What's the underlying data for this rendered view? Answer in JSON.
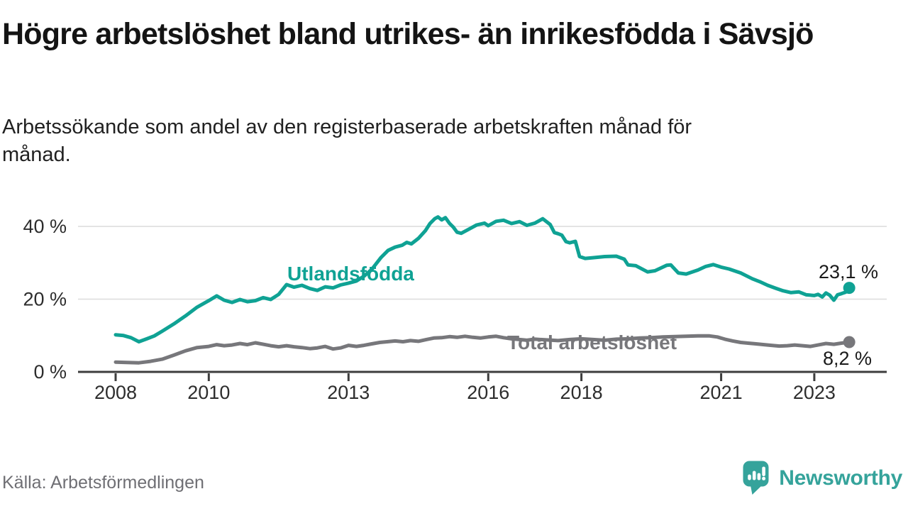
{
  "header": {
    "title": "Högre arbetslöshet bland utrikes- än inrikesfödda i Sävsjö",
    "subtitle": "Arbetssökande som andel av den registerbaserade arbetskraften månad för månad."
  },
  "chart_data": {
    "type": "line",
    "unit": "%",
    "grid": "horizontal",
    "legend_position": "inline-labels",
    "x_domain": [
      2008.0,
      2023.75
    ],
    "y_domain": [
      0,
      45
    ],
    "x_label_years": [
      2008,
      2010,
      2013,
      2016,
      2018,
      2021,
      2023
    ],
    "y_ticks": [
      {
        "value": 0,
        "label": "0 %"
      },
      {
        "value": 20,
        "label": "20 %"
      },
      {
        "value": 40,
        "label": "40 %"
      }
    ],
    "series": [
      {
        "name": "Utlandsfödda",
        "color": "#0FA294",
        "end_value": 23.1,
        "end_label": "23,1 %",
        "name_label_pos": {
          "x": 405,
          "y": 395
        },
        "end_label_pos": {
          "x": 1238,
          "y": 392
        },
        "points": [
          [
            2008.0,
            10.2
          ],
          [
            2008.17,
            10.0
          ],
          [
            2008.33,
            9.4
          ],
          [
            2008.5,
            8.3
          ],
          [
            2008.67,
            9.1
          ],
          [
            2008.83,
            9.9
          ],
          [
            2009.0,
            11.2
          ],
          [
            2009.25,
            13.2
          ],
          [
            2009.5,
            15.4
          ],
          [
            2009.75,
            17.8
          ],
          [
            2010.0,
            19.6
          ],
          [
            2010.17,
            20.9
          ],
          [
            2010.33,
            19.7
          ],
          [
            2010.5,
            19.1
          ],
          [
            2010.67,
            19.9
          ],
          [
            2010.83,
            19.3
          ],
          [
            2011.0,
            19.6
          ],
          [
            2011.17,
            20.4
          ],
          [
            2011.33,
            19.9
          ],
          [
            2011.5,
            21.3
          ],
          [
            2011.67,
            24.0
          ],
          [
            2011.83,
            23.3
          ],
          [
            2012.0,
            23.8
          ],
          [
            2012.17,
            22.9
          ],
          [
            2012.33,
            22.4
          ],
          [
            2012.5,
            23.4
          ],
          [
            2012.67,
            23.1
          ],
          [
            2012.83,
            23.9
          ],
          [
            2013.0,
            24.4
          ],
          [
            2013.17,
            25.0
          ],
          [
            2013.33,
            26.3
          ],
          [
            2013.5,
            28.2
          ],
          [
            2013.7,
            31.5
          ],
          [
            2013.85,
            33.4
          ],
          [
            2014.0,
            34.3
          ],
          [
            2014.15,
            34.8
          ],
          [
            2014.25,
            35.6
          ],
          [
            2014.35,
            35.2
          ],
          [
            2014.5,
            36.7
          ],
          [
            2014.65,
            38.8
          ],
          [
            2014.75,
            40.8
          ],
          [
            2014.85,
            42.1
          ],
          [
            2014.92,
            42.6
          ],
          [
            2015.0,
            41.8
          ],
          [
            2015.08,
            42.4
          ],
          [
            2015.17,
            40.8
          ],
          [
            2015.25,
            39.8
          ],
          [
            2015.33,
            38.4
          ],
          [
            2015.42,
            38.1
          ],
          [
            2015.58,
            39.2
          ],
          [
            2015.75,
            40.4
          ],
          [
            2015.92,
            40.9
          ],
          [
            2016.0,
            40.2
          ],
          [
            2016.17,
            41.4
          ],
          [
            2016.33,
            41.7
          ],
          [
            2016.5,
            40.8
          ],
          [
            2016.67,
            41.3
          ],
          [
            2016.83,
            40.3
          ],
          [
            2017.0,
            40.9
          ],
          [
            2017.17,
            42.1
          ],
          [
            2017.33,
            40.5
          ],
          [
            2017.42,
            38.3
          ],
          [
            2017.5,
            38.0
          ],
          [
            2017.58,
            37.6
          ],
          [
            2017.67,
            35.8
          ],
          [
            2017.75,
            35.5
          ],
          [
            2017.87,
            35.9
          ],
          [
            2017.96,
            31.7
          ],
          [
            2018.08,
            31.2
          ],
          [
            2018.25,
            31.4
          ],
          [
            2018.5,
            31.7
          ],
          [
            2018.75,
            31.8
          ],
          [
            2018.92,
            31.0
          ],
          [
            2019.0,
            29.4
          ],
          [
            2019.17,
            29.2
          ],
          [
            2019.42,
            27.5
          ],
          [
            2019.58,
            27.8
          ],
          [
            2019.83,
            29.3
          ],
          [
            2019.92,
            29.4
          ],
          [
            2020.08,
            27.2
          ],
          [
            2020.25,
            26.9
          ],
          [
            2020.5,
            28.0
          ],
          [
            2020.67,
            29.0
          ],
          [
            2020.83,
            29.5
          ],
          [
            2021.0,
            28.8
          ],
          [
            2021.17,
            28.3
          ],
          [
            2021.42,
            27.2
          ],
          [
            2021.67,
            25.6
          ],
          [
            2021.83,
            24.8
          ],
          [
            2022.0,
            23.8
          ],
          [
            2022.17,
            23.0
          ],
          [
            2022.33,
            22.3
          ],
          [
            2022.5,
            21.8
          ],
          [
            2022.67,
            22.0
          ],
          [
            2022.83,
            21.2
          ],
          [
            2023.0,
            21.0
          ],
          [
            2023.08,
            21.3
          ],
          [
            2023.17,
            20.6
          ],
          [
            2023.25,
            21.7
          ],
          [
            2023.33,
            21.1
          ],
          [
            2023.42,
            19.7
          ],
          [
            2023.5,
            21.2
          ],
          [
            2023.58,
            21.5
          ],
          [
            2023.67,
            21.9
          ],
          [
            2023.75,
            23.1
          ]
        ]
      },
      {
        "name": "Total arbetslöshet",
        "color": "#77777B",
        "end_value": 8.2,
        "end_label": "8,2 %",
        "name_label_pos": {
          "x": 715,
          "y": 492
        },
        "end_label_pos": {
          "x": 1229,
          "y": 514
        },
        "points": [
          [
            2008.0,
            2.7
          ],
          [
            2008.25,
            2.6
          ],
          [
            2008.5,
            2.5
          ],
          [
            2008.75,
            2.9
          ],
          [
            2009.0,
            3.5
          ],
          [
            2009.25,
            4.6
          ],
          [
            2009.5,
            5.8
          ],
          [
            2009.75,
            6.7
          ],
          [
            2010.0,
            7.0
          ],
          [
            2010.17,
            7.5
          ],
          [
            2010.33,
            7.2
          ],
          [
            2010.5,
            7.4
          ],
          [
            2010.67,
            7.8
          ],
          [
            2010.83,
            7.5
          ],
          [
            2011.0,
            8.0
          ],
          [
            2011.17,
            7.6
          ],
          [
            2011.33,
            7.2
          ],
          [
            2011.5,
            6.9
          ],
          [
            2011.67,
            7.2
          ],
          [
            2011.83,
            6.9
          ],
          [
            2012.0,
            6.7
          ],
          [
            2012.17,
            6.4
          ],
          [
            2012.33,
            6.6
          ],
          [
            2012.5,
            7.0
          ],
          [
            2012.67,
            6.3
          ],
          [
            2012.83,
            6.6
          ],
          [
            2013.0,
            7.3
          ],
          [
            2013.17,
            7.0
          ],
          [
            2013.33,
            7.3
          ],
          [
            2013.5,
            7.7
          ],
          [
            2013.67,
            8.1
          ],
          [
            2013.83,
            8.3
          ],
          [
            2014.0,
            8.5
          ],
          [
            2014.17,
            8.3
          ],
          [
            2014.33,
            8.6
          ],
          [
            2014.5,
            8.4
          ],
          [
            2014.67,
            8.9
          ],
          [
            2014.83,
            9.3
          ],
          [
            2015.0,
            9.4
          ],
          [
            2015.17,
            9.7
          ],
          [
            2015.33,
            9.5
          ],
          [
            2015.5,
            9.8
          ],
          [
            2015.67,
            9.5
          ],
          [
            2015.83,
            9.3
          ],
          [
            2016.0,
            9.6
          ],
          [
            2016.17,
            9.8
          ],
          [
            2016.33,
            9.4
          ],
          [
            2016.5,
            9.1
          ],
          [
            2016.67,
            8.9
          ],
          [
            2016.83,
            8.7
          ],
          [
            2017.0,
            9.0
          ],
          [
            2017.25,
            8.8
          ],
          [
            2017.5,
            8.6
          ],
          [
            2017.75,
            8.9
          ],
          [
            2018.0,
            9.1
          ],
          [
            2018.25,
            8.9
          ],
          [
            2018.5,
            8.7
          ],
          [
            2018.75,
            9.0
          ],
          [
            2019.0,
            9.1
          ],
          [
            2019.25,
            9.3
          ],
          [
            2019.5,
            9.4
          ],
          [
            2019.75,
            9.6
          ],
          [
            2020.0,
            9.7
          ],
          [
            2020.25,
            9.8
          ],
          [
            2020.5,
            9.9
          ],
          [
            2020.75,
            9.9
          ],
          [
            2020.92,
            9.6
          ],
          [
            2021.08,
            9.0
          ],
          [
            2021.25,
            8.5
          ],
          [
            2021.42,
            8.1
          ],
          [
            2021.58,
            7.9
          ],
          [
            2021.75,
            7.7
          ],
          [
            2021.92,
            7.5
          ],
          [
            2022.08,
            7.3
          ],
          [
            2022.25,
            7.1
          ],
          [
            2022.42,
            7.2
          ],
          [
            2022.58,
            7.4
          ],
          [
            2022.75,
            7.2
          ],
          [
            2022.92,
            7.0
          ],
          [
            2023.08,
            7.4
          ],
          [
            2023.25,
            7.8
          ],
          [
            2023.42,
            7.6
          ],
          [
            2023.58,
            7.9
          ],
          [
            2023.75,
            8.2
          ]
        ]
      }
    ]
  },
  "footer": {
    "source": "Källa: Arbetsförmedlingen",
    "brand": "Newsworthy"
  },
  "colors": {
    "accent_teal": "#0FA294",
    "series_gray": "#77777B",
    "axis": "#3D3D3D",
    "grid": "#DCDCDC",
    "annotation_text": "#1A1A1A",
    "logo_teal": "#35A39B"
  }
}
